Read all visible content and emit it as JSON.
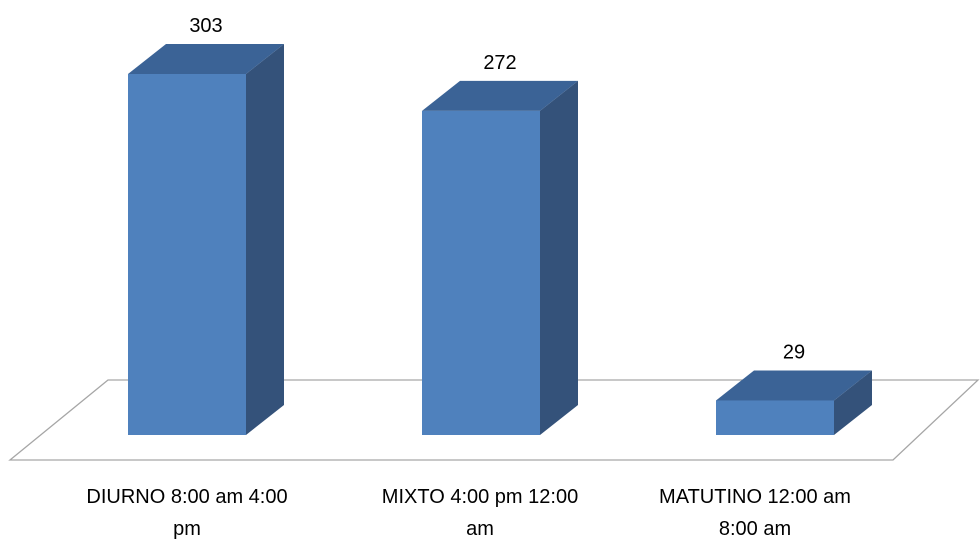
{
  "chart_data": {
    "type": "bar",
    "style": "3d-column",
    "categories": [
      "DIURNO 8:00 am 4:00 pm",
      "MIXTO 4:00 pm 12:00 am",
      "MATUTINO 12:00 am 8:00 am"
    ],
    "category_lines": [
      [
        "DIURNO 8:00 am 4:00",
        "pm"
      ],
      [
        "MIXTO 4:00 pm 12:00",
        "am"
      ],
      [
        "MATUTINO 12:00 am",
        "8:00 am"
      ]
    ],
    "values": [
      303,
      272,
      29
    ],
    "data_labels": [
      "303",
      "272",
      "29"
    ],
    "title": "",
    "xlabel": "",
    "ylabel": "",
    "ylim": [
      0,
      303
    ],
    "grid": false,
    "legend": "none",
    "colors": {
      "front": "#4F81BD",
      "side": "#34527A",
      "top": "#3B6396",
      "floor_stroke": "#A6A6A6"
    }
  }
}
